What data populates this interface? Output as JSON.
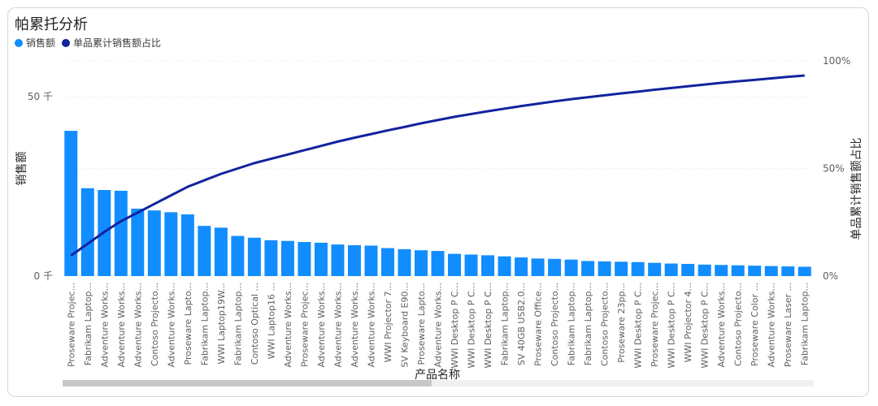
{
  "header": {
    "title": "帕累托分析"
  },
  "legend": [
    {
      "label": "销售额",
      "color": "#118DFF"
    },
    {
      "label": "单品累计销售额占比",
      "color": "#12239E"
    }
  ],
  "chart_data": {
    "type": "bar",
    "title": "帕累托分析",
    "xlabel": "产品名称",
    "ylabel": "销售额",
    "y2label": "单品累计销售额占比",
    "ylim": [
      0,
      100
    ],
    "y2lim": [
      0,
      100
    ],
    "y_ticks": [
      {
        "value": 0,
        "label": "0 千"
      },
      {
        "value": 50,
        "label": "50 千"
      }
    ],
    "y2_ticks": [
      {
        "value": 0,
        "label": "0%"
      },
      {
        "value": 50,
        "label": "50%"
      },
      {
        "value": 100,
        "label": "100%"
      }
    ],
    "categories": [
      "Proseware Projec...",
      "Fabrikam Laptop...",
      "Adventure Works...",
      "Adventure Works...",
      "Adventure Works...",
      "Contoso Projecto...",
      "Adventure Works...",
      "Proseware Lapto...",
      "Fabrikam Laptop...",
      "WWI Laptop19W...",
      "Fabrikam Laptop...",
      "Contoso Optical ...",
      "WWI Laptop16 ...",
      "Adventure Works...",
      "Proseware Projec...",
      "Adventure Works...",
      "Adventure Works...",
      "Adventure Works...",
      "Adventure Works...",
      "WWI Projector 7...",
      "SV Keyboard E90...",
      "Proseware Lapto...",
      "Adventure Works...",
      "WWI Desktop P C...",
      "WWI Desktop P C...",
      "WWI Desktop P C...",
      "Fabrikam Laptop...",
      "SV 40GB USB2.0...",
      "Proseware Office...",
      "Contoso Projecto...",
      "Fabrikam Laptop...",
      "Fabrikam Laptop...",
      "Contoso Projecto...",
      "Proseware 23pp...",
      "WWI Desktop P C...",
      "Proseware Projec...",
      "WWI Desktop P C...",
      "WWI Projector 4...",
      "WWI Desktop P C...",
      "Adventure Works...",
      "Contoso Projecto...",
      "Proseware Color ...",
      "Adventure Works...",
      "Proseware Laser ...",
      "Fabrikam Laptop..."
    ],
    "series": [
      {
        "name": "销售额",
        "axis": "left",
        "values": [
          40.5,
          24.5,
          24.0,
          23.8,
          18.8,
          18.3,
          17.8,
          17.2,
          14.0,
          13.5,
          11.2,
          10.7,
          10.0,
          9.8,
          9.5,
          9.3,
          8.8,
          8.6,
          8.5,
          7.8,
          7.5,
          7.2,
          7.0,
          6.2,
          6.0,
          5.8,
          5.5,
          5.2,
          4.9,
          4.8,
          4.6,
          4.2,
          4.1,
          4.0,
          3.9,
          3.7,
          3.5,
          3.4,
          3.2,
          3.1,
          3.0,
          2.9,
          2.8,
          2.7,
          2.6
        ]
      },
      {
        "name": "单品累计销售额占比",
        "axis": "right",
        "type": "line",
        "values": [
          9.5,
          15.0,
          20.5,
          25.5,
          29.5,
          33.5,
          37.5,
          41.5,
          44.5,
          47.5,
          50.0,
          52.5,
          54.5,
          56.5,
          58.5,
          60.5,
          62.5,
          64.3,
          66.0,
          67.7,
          69.3,
          71.0,
          72.5,
          74.0,
          75.3,
          76.6,
          77.8,
          79.0,
          80.1,
          81.2,
          82.2,
          83.1,
          84.0,
          84.9,
          85.7,
          86.6,
          87.4,
          88.2,
          89.0,
          89.8,
          90.5,
          91.2,
          91.9,
          92.6,
          93.2
        ]
      }
    ]
  }
}
